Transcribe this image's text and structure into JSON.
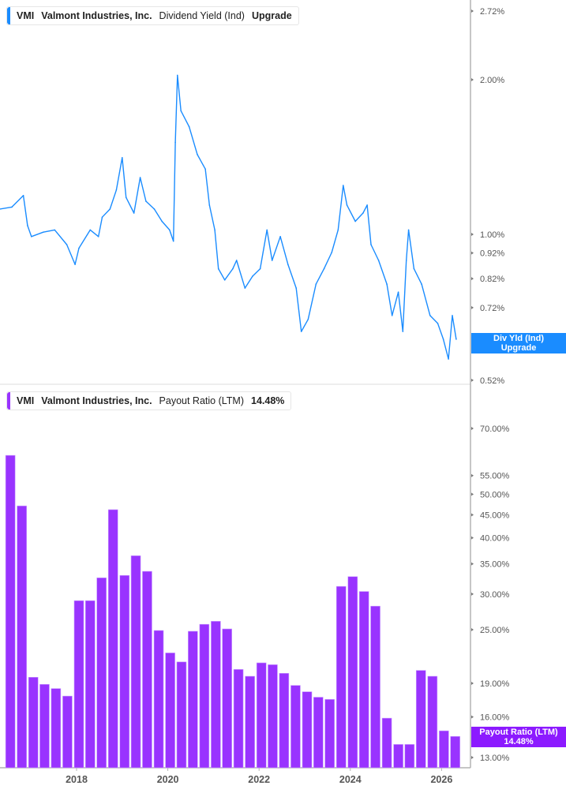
{
  "colors": {
    "yield_line": "#1a8cff",
    "bars": "#9933ff",
    "badge_blue": "#1a8cff",
    "badge_purple": "#8c1aff",
    "axis": "#b3b3b3"
  },
  "top_legend": {
    "ticker": "VMI",
    "company": "Valmont Industries, Inc.",
    "metric": "Dividend Yield (Ind)",
    "value": "Upgrade"
  },
  "bottom_legend": {
    "ticker": "VMI",
    "company": "Valmont Industries, Inc.",
    "metric": "Payout Ratio (LTM)",
    "value": "14.48%"
  },
  "top_badge": {
    "line1": "Div Yld (Ind)",
    "line2": "Upgrade"
  },
  "bottom_badge": {
    "line1": "Payout Ratio (LTM)",
    "line2": "14.48%"
  },
  "chart_data": [
    {
      "type": "line",
      "series_label": "Dividend Yield (Ind)",
      "y_scale": "log",
      "ylim": [
        0.49,
        2.9
      ],
      "xlim": [
        "2016-04-25",
        "2026-07-01"
      ],
      "y_ticks": [
        "2.72%",
        "2.00%",
        "1.00%",
        "0.92%",
        "0.82%",
        "0.72%",
        "0.62%",
        "0.52%"
      ],
      "y_tick_values": [
        2.72,
        2.0,
        1.0,
        0.92,
        0.82,
        0.72,
        0.62,
        0.52
      ],
      "x": [
        "2016-04-25",
        "2016-08-01",
        "2016-11-01",
        "2016-12-05",
        "2017-01-05",
        "2017-04-10",
        "2017-07-10",
        "2017-10-15",
        "2017-12-20",
        "2018-01-20",
        "2018-04-20",
        "2018-06-25",
        "2018-07-25",
        "2018-09-25",
        "2018-11-15",
        "2019-01-01",
        "2019-02-01",
        "2019-04-05",
        "2019-05-25",
        "2019-07-10",
        "2019-09-15",
        "2019-11-15",
        "2020-01-15",
        "2020-02-15",
        "2020-03-01",
        "2020-03-18",
        "2020-04-15",
        "2020-06-20",
        "2020-08-25",
        "2020-10-28",
        "2020-11-30",
        "2021-01-12",
        "2021-02-10",
        "2021-04-01",
        "2021-06-05",
        "2021-07-05",
        "2021-09-10",
        "2021-11-10",
        "2022-01-10",
        "2022-03-05",
        "2022-04-15",
        "2022-06-20",
        "2022-08-20",
        "2022-10-25",
        "2022-12-05",
        "2023-01-28",
        "2023-04-01",
        "2023-06-05",
        "2023-08-05",
        "2023-09-25",
        "2023-11-05",
        "2023-12-05",
        "2024-02-10",
        "2024-04-12",
        "2024-05-15",
        "2024-06-15",
        "2024-08-15",
        "2024-10-20",
        "2024-12-01",
        "2025-01-20",
        "2025-02-25",
        "2025-03-25",
        "2025-04-12",
        "2025-05-25",
        "2025-07-25",
        "2025-10-01",
        "2025-12-01",
        "2026-01-15",
        "2026-02-25",
        "2026-03-28",
        "2026-04-28"
      ],
      "values": [
        1.12,
        1.13,
        1.19,
        1.04,
        0.99,
        1.01,
        1.02,
        0.955,
        0.874,
        0.94,
        1.02,
        0.99,
        1.08,
        1.12,
        1.22,
        1.41,
        1.18,
        1.1,
        1.29,
        1.16,
        1.12,
        1.06,
        1.02,
        0.97,
        1.51,
        2.04,
        1.74,
        1.62,
        1.43,
        1.34,
        1.14,
        1.02,
        0.857,
        0.815,
        0.857,
        0.89,
        0.786,
        0.829,
        0.857,
        1.02,
        0.89,
        0.99,
        0.874,
        0.786,
        0.647,
        0.683,
        0.8,
        0.857,
        0.922,
        1.02,
        1.245,
        1.14,
        1.06,
        1.1,
        1.14,
        0.955,
        0.89,
        0.8,
        0.695,
        0.772,
        0.647,
        0.89,
        1.02,
        0.857,
        0.8,
        0.695,
        0.671,
        0.625,
        0.572,
        0.695,
        0.625
      ]
    },
    {
      "type": "bar",
      "series_label": "Payout Ratio (LTM)",
      "y_scale": "log",
      "ylim": [
        12.6,
        85
      ],
      "y_ticks": [
        "70.00%",
        "55.00%",
        "50.00%",
        "45.00%",
        "40.00%",
        "35.00%",
        "30.00%",
        "25.00%",
        "19.00%",
        "16.00%",
        "13.00%"
      ],
      "y_tick_values": [
        70,
        55,
        50,
        45,
        40,
        35,
        30,
        25,
        19,
        16,
        13
      ],
      "x_ticks": [
        "2018",
        "2020",
        "2022",
        "2024",
        "2026"
      ],
      "categories": [
        "2016-07",
        "2016-10",
        "2017-01",
        "2017-04",
        "2017-07",
        "2017-10",
        "2018-01",
        "2018-04",
        "2018-07",
        "2018-10",
        "2019-01",
        "2019-04",
        "2019-07",
        "2019-10",
        "2020-01",
        "2020-04",
        "2020-07",
        "2020-10",
        "2021-01",
        "2021-04",
        "2021-07",
        "2021-10",
        "2022-01",
        "2022-04",
        "2022-07",
        "2022-10",
        "2023-01",
        "2023-04",
        "2023-07",
        "2023-10",
        "2024-01",
        "2024-04",
        "2024-07",
        "2024-10",
        "2025-01",
        "2025-04",
        "2025-07",
        "2025-10",
        "2026-01",
        "2026-04"
      ],
      "values": [
        61.0,
        47.1,
        19.6,
        18.9,
        18.5,
        17.8,
        29.0,
        29.0,
        32.6,
        46.2,
        33.0,
        36.5,
        33.7,
        24.9,
        22.2,
        21.2,
        24.8,
        25.7,
        26.1,
        25.1,
        20.4,
        19.7,
        21.1,
        20.9,
        20.0,
        18.8,
        18.2,
        17.7,
        17.5,
        31.2,
        32.8,
        30.4,
        28.2,
        15.9,
        13.9,
        13.9,
        20.3,
        19.7,
        14.9,
        14.48
      ]
    }
  ]
}
